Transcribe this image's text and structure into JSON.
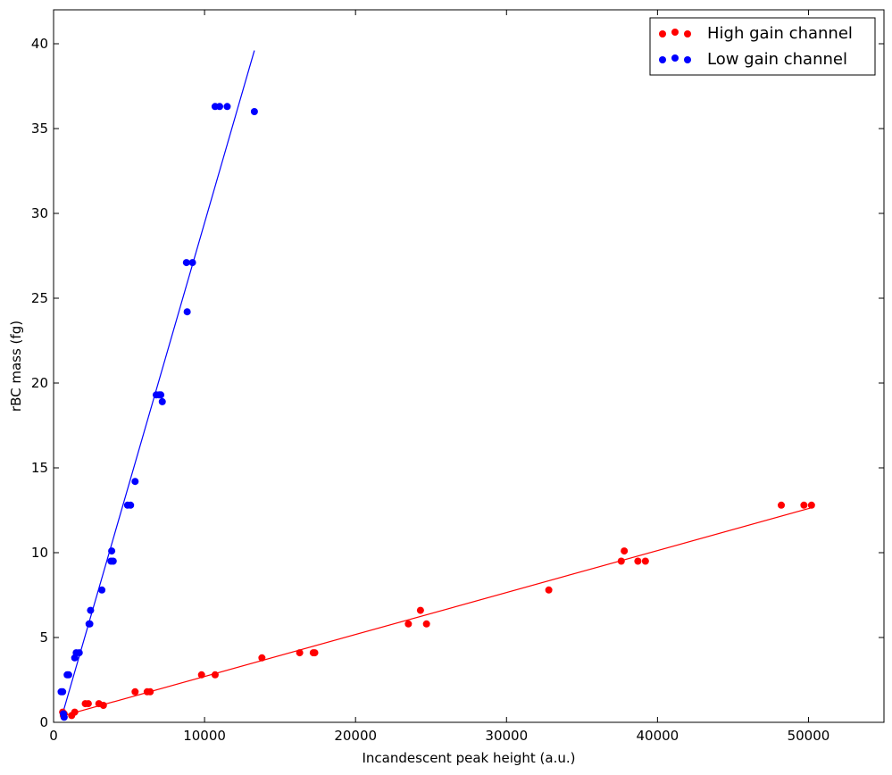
{
  "chart_data": {
    "type": "scatter",
    "title": "",
    "xlabel": "Incandescent peak height (a.u.)",
    "ylabel": "rBC mass (fg)",
    "xlim": [
      0,
      55000
    ],
    "ylim": [
      0,
      42
    ],
    "xticks": [
      0,
      10000,
      20000,
      30000,
      40000,
      50000
    ],
    "yticks": [
      0,
      5,
      10,
      15,
      20,
      25,
      30,
      35,
      40
    ],
    "xtick_labels": [
      "0",
      "10000",
      "20000",
      "30000",
      "40000",
      "50000"
    ],
    "ytick_labels": [
      "0",
      "5",
      "10",
      "15",
      "20",
      "25",
      "30",
      "35",
      "40"
    ],
    "grid": false,
    "legend_position": "top-right",
    "series": [
      {
        "name": "High gain channel",
        "color": "#ff0000",
        "points": [
          [
            600,
            0.6
          ],
          [
            650,
            0.4
          ],
          [
            700,
            0.5
          ],
          [
            1200,
            0.4
          ],
          [
            1400,
            0.6
          ],
          [
            2100,
            1.1
          ],
          [
            2300,
            1.1
          ],
          [
            3000,
            1.1
          ],
          [
            3300,
            1.0
          ],
          [
            5400,
            1.8
          ],
          [
            6200,
            1.8
          ],
          [
            6400,
            1.8
          ],
          [
            9800,
            2.8
          ],
          [
            10700,
            2.8
          ],
          [
            13800,
            3.8
          ],
          [
            16300,
            4.1
          ],
          [
            17200,
            4.1
          ],
          [
            17300,
            4.1
          ],
          [
            23500,
            5.8
          ],
          [
            24300,
            6.6
          ],
          [
            24700,
            5.8
          ],
          [
            32800,
            7.8
          ],
          [
            37600,
            9.5
          ],
          [
            37800,
            10.1
          ],
          [
            38700,
            9.5
          ],
          [
            39200,
            9.5
          ],
          [
            48200,
            12.8
          ],
          [
            49700,
            12.8
          ],
          [
            50200,
            12.8
          ]
        ],
        "fit_line": [
          [
            500,
            0.35
          ],
          [
            50200,
            12.65
          ]
        ]
      },
      {
        "name": "Low gain channel",
        "color": "#0000ff",
        "points": [
          [
            500,
            1.8
          ],
          [
            600,
            1.8
          ],
          [
            650,
            0.5
          ],
          [
            700,
            0.3
          ],
          [
            900,
            2.8
          ],
          [
            1000,
            2.8
          ],
          [
            1400,
            3.8
          ],
          [
            1500,
            4.1
          ],
          [
            1700,
            4.1
          ],
          [
            2350,
            5.8
          ],
          [
            2400,
            5.8
          ],
          [
            2450,
            6.6
          ],
          [
            3200,
            7.8
          ],
          [
            3800,
            9.5
          ],
          [
            3850,
            10.1
          ],
          [
            3950,
            9.5
          ],
          [
            4900,
            12.8
          ],
          [
            5100,
            12.8
          ],
          [
            5400,
            14.2
          ],
          [
            6800,
            19.3
          ],
          [
            7000,
            19.3
          ],
          [
            7100,
            19.3
          ],
          [
            7200,
            18.9
          ],
          [
            8800,
            27.1
          ],
          [
            8850,
            24.2
          ],
          [
            9200,
            27.1
          ],
          [
            10700,
            36.3
          ],
          [
            11000,
            36.3
          ],
          [
            11500,
            36.3
          ],
          [
            13300,
            36.0
          ]
        ],
        "fit_line": [
          [
            500,
            0.2
          ],
          [
            13300,
            39.6
          ]
        ]
      }
    ]
  }
}
